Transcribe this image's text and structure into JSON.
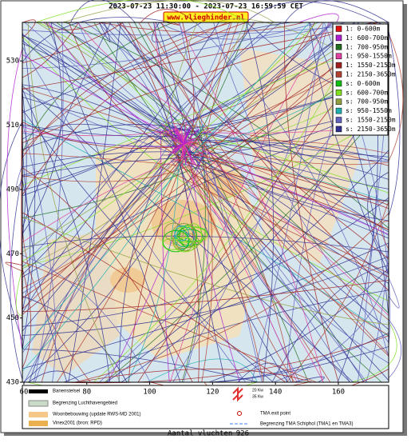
{
  "header": {
    "title": "2023-07-23 11:30:00 - 2023-07-23 16:59:59 CET",
    "site": "www.vlieghinder.nl"
  },
  "axes": {
    "xlim": [
      59.5,
      176
    ],
    "ylim": [
      430,
      542
    ],
    "xticks": [
      60,
      80,
      100,
      120,
      140,
      160
    ],
    "yticks": [
      430,
      450,
      470,
      490,
      510,
      530
    ]
  },
  "legend": [
    {
      "name": "1: 0-600m",
      "color": "#e01010"
    },
    {
      "name": "1: 600-700m",
      "color": "#b020d0"
    },
    {
      "name": "1: 700-950m",
      "color": "#207020"
    },
    {
      "name": "1: 950-1550m",
      "color": "#e040a0"
    },
    {
      "name": "1: 1550-2150m",
      "color": "#a02020"
    },
    {
      "name": "1: 2150-3650m",
      "color": "#b04030"
    },
    {
      "name": "s: 0-600m",
      "color": "#10c010"
    },
    {
      "name": "s: 600-700m",
      "color": "#80e020"
    },
    {
      "name": "s: 700-950m",
      "color": "#90a040"
    },
    {
      "name": "s: 950-1550m",
      "color": "#20b0b0"
    },
    {
      "name": "s: 1550-2150m",
      "color": "#6060c0"
    },
    {
      "name": "s: 2150-3650m",
      "color": "#303090"
    }
  ],
  "footer": {
    "items": [
      "Banenstelsel",
      "Begrenzing Luchthavengebied",
      "Woonbebouwing (update RWS-MD 2001)",
      "Vinex2001 (bron: RPD)",
      "20 Kw",
      "35 Kw",
      "TMA exit point",
      "Begrenzing TMA Schiphol  (TMA1 en TMA3)"
    ],
    "count_label": "Aantal vluchten :",
    "count": 926
  }
}
